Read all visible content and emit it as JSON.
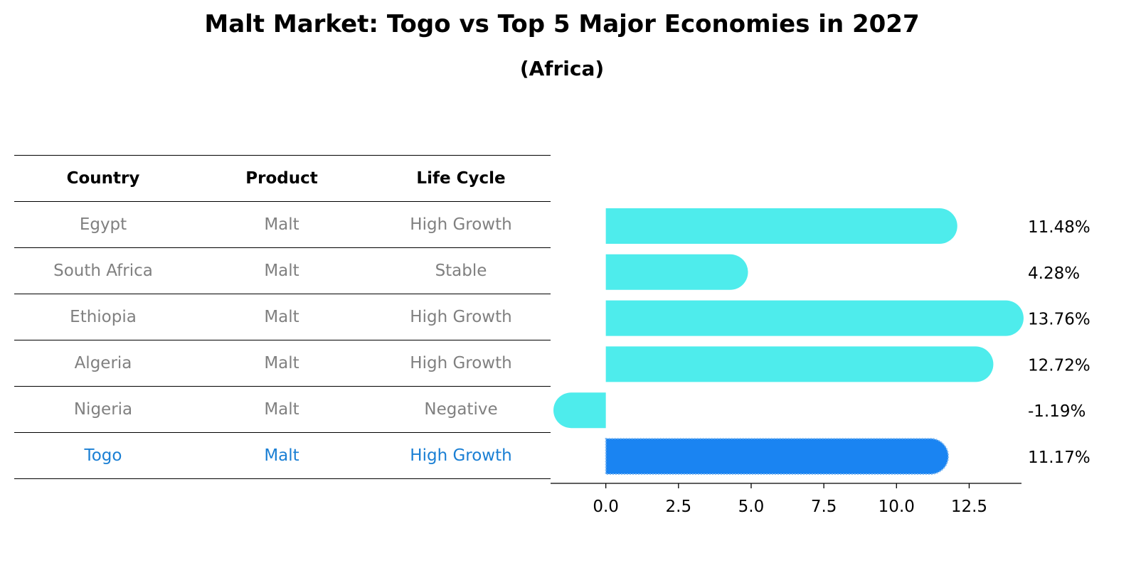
{
  "header": {
    "title": "Malt Market: Togo vs Top 5 Major Economies in 2027",
    "subtitle": "(Africa)"
  },
  "table": {
    "columns": [
      "Country",
      "Product",
      "Life Cycle"
    ],
    "rows": [
      {
        "country": "Egypt",
        "product": "Malt",
        "life_cycle": "High Growth"
      },
      {
        "country": "South Africa",
        "product": "Malt",
        "life_cycle": "Stable"
      },
      {
        "country": "Ethiopia",
        "product": "Malt",
        "life_cycle": "High Growth"
      },
      {
        "country": "Algeria",
        "product": "Malt",
        "life_cycle": "High Growth"
      },
      {
        "country": "Nigeria",
        "product": "Malt",
        "life_cycle": "Negative"
      },
      {
        "country": "Togo",
        "product": "Malt",
        "life_cycle": "High Growth"
      }
    ],
    "highlight_row": "Togo",
    "colors": {
      "text": "#808080",
      "highlight": "#1a7fd4",
      "header": "#000000"
    }
  },
  "chart_data": {
    "type": "bar",
    "orientation": "horizontal",
    "categories": [
      "Egypt",
      "South Africa",
      "Ethiopia",
      "Algeria",
      "Nigeria",
      "Togo"
    ],
    "values": [
      11.48,
      4.28,
      13.76,
      12.72,
      -1.19,
      11.17
    ],
    "value_labels": [
      "11.48%",
      "4.28%",
      "13.76%",
      "12.72%",
      "-1.19%",
      "11.17%"
    ],
    "xlim": [
      -1.9,
      14.3
    ],
    "xticks": [
      0.0,
      2.5,
      5.0,
      7.5,
      10.0,
      12.5
    ],
    "xtick_labels": [
      "0.0",
      "2.5",
      "5.0",
      "7.5",
      "10.0",
      "12.5"
    ],
    "grid": false,
    "colors": {
      "default": "#4eecec",
      "highlight": "#1a84f2"
    },
    "highlight_index": 5
  }
}
